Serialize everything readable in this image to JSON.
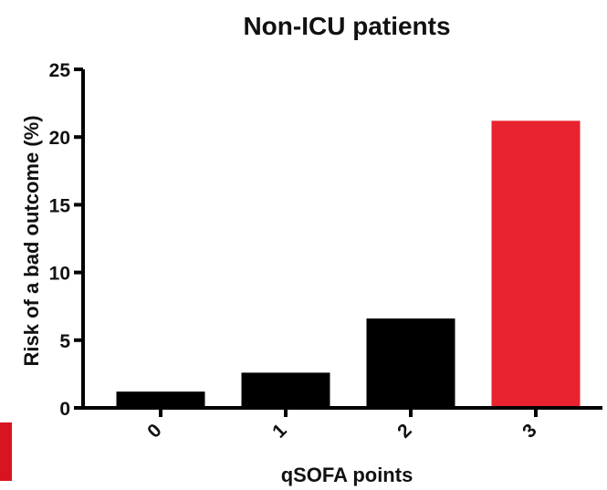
{
  "chart_data": {
    "type": "bar",
    "title": "Non-ICU patients",
    "xlabel": "qSOFA points",
    "ylabel": "Risk of a bad outcome (%)",
    "categories": [
      "0",
      "1",
      "2",
      "3"
    ],
    "values": [
      1.2,
      2.6,
      6.6,
      21.2
    ],
    "ylim": [
      0,
      25
    ],
    "yticks": [
      "0",
      "5",
      "10",
      "15",
      "20",
      "25"
    ],
    "grid": false,
    "colors": {
      "default_bar": "#000000",
      "highlight_bar": "#e8222e",
      "edge_marker": "#d8141e"
    },
    "bar_colors": [
      "#000000",
      "#000000",
      "#000000",
      "#e8222e"
    ]
  }
}
